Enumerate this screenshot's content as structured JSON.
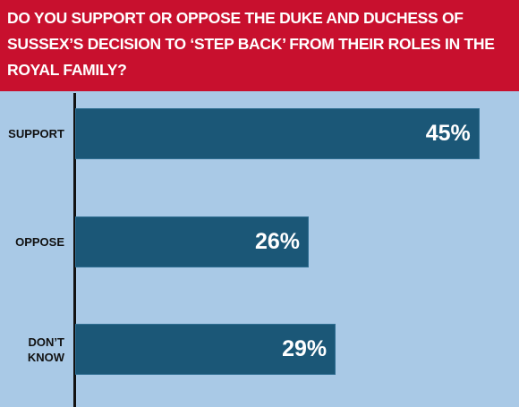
{
  "chart_data": {
    "type": "bar",
    "orientation": "horizontal",
    "title": "DO YOU SUPPORT OR OPPOSE THE DUKE AND DUCHESS OF SUSSEX’S DECISION TO ‘STEP BACK’ FROM THEIR ROLES IN THE ROYAL FAMILY?",
    "categories": [
      "SUPPORT",
      "OPPOSE",
      "DON’T KNOW"
    ],
    "values": [
      45,
      26,
      29
    ],
    "value_labels": [
      "45%",
      "26%",
      "29%"
    ],
    "color": "#1b5777",
    "title_color": "#c8102e",
    "background": "#a9c9e6"
  }
}
